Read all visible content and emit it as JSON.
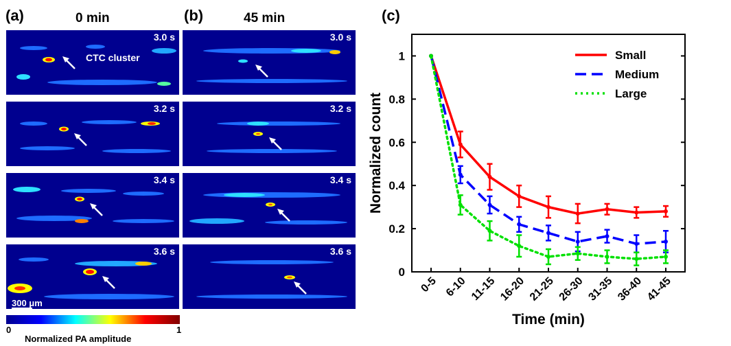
{
  "panels": {
    "a": {
      "letter": "(a)",
      "title": "0 min",
      "times": [
        "3.0 s",
        "3.2 s",
        "3.4 s",
        "3.6 s"
      ],
      "annotation": "CTC cluster",
      "scalebar": "300 μm"
    },
    "b": {
      "letter": "(b)",
      "title": "45 min",
      "times": [
        "3.0 s",
        "3.2 s",
        "3.4 s",
        "3.6 s"
      ]
    },
    "c": {
      "letter": "(c)"
    }
  },
  "colorbar": {
    "min": "0",
    "max": "1",
    "label": "Normalized PA amplitude",
    "colors": [
      "#00008f",
      "#0000ff",
      "#00ffff",
      "#ffff00",
      "#ff0000",
      "#800000"
    ]
  },
  "chart_data": {
    "type": "line",
    "categories": [
      "0-5",
      "6-10",
      "11-15",
      "16-20",
      "21-25",
      "26-30",
      "31-35",
      "36-40",
      "41-45"
    ],
    "xlabel": "Time (min)",
    "ylabel": "Normalized count",
    "ylim": [
      0,
      1.1
    ],
    "yticks": [
      "0",
      "0.2",
      "0.4",
      "0.6",
      "0.8",
      "1"
    ],
    "legend_position": "top-right",
    "grid": false,
    "series": [
      {
        "name": "Small",
        "color": "#ff0000",
        "dash": "solid",
        "values": [
          1,
          0.59,
          0.44,
          0.35,
          0.3,
          0.27,
          0.29,
          0.275,
          0.28
        ],
        "errors": [
          0,
          0.06,
          0.06,
          0.05,
          0.05,
          0.045,
          0.025,
          0.025,
          0.025
        ]
      },
      {
        "name": "Medium",
        "color": "#0000ff",
        "dash": "dashed",
        "values": [
          1,
          0.45,
          0.31,
          0.22,
          0.18,
          0.14,
          0.165,
          0.13,
          0.14
        ],
        "errors": [
          0,
          0.04,
          0.04,
          0.035,
          0.035,
          0.045,
          0.03,
          0.04,
          0.05
        ]
      },
      {
        "name": "Large",
        "color": "#00e000",
        "dash": "dotted",
        "values": [
          1,
          0.31,
          0.19,
          0.12,
          0.07,
          0.085,
          0.07,
          0.06,
          0.07
        ],
        "errors": [
          0,
          0.045,
          0.045,
          0.05,
          0.035,
          0.03,
          0.03,
          0.03,
          0.03
        ]
      }
    ]
  }
}
